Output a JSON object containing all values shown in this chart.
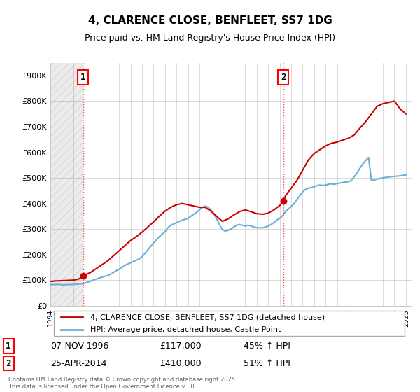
{
  "title": "4, CLARENCE CLOSE, BENFLEET, SS7 1DG",
  "subtitle": "Price paid vs. HM Land Registry's House Price Index (HPI)",
  "xlim": [
    1994.0,
    2025.5
  ],
  "ylim": [
    0,
    950000
  ],
  "yticks": [
    0,
    100000,
    200000,
    300000,
    400000,
    500000,
    600000,
    700000,
    800000,
    900000
  ],
  "ytick_labels": [
    "£0",
    "£100K",
    "£200K",
    "£300K",
    "£400K",
    "£500K",
    "£600K",
    "£700K",
    "£800K",
    "£900K"
  ],
  "xticks": [
    1994,
    1995,
    1996,
    1997,
    1998,
    1999,
    2000,
    2001,
    2002,
    2003,
    2004,
    2005,
    2006,
    2007,
    2008,
    2009,
    2010,
    2011,
    2012,
    2013,
    2014,
    2015,
    2016,
    2017,
    2018,
    2019,
    2020,
    2021,
    2022,
    2023,
    2024,
    2025
  ],
  "sale1_x": 1996.856,
  "sale1_y": 117000,
  "sale1_label": "1",
  "sale1_date": "07-NOV-1996",
  "sale1_price": "£117,000",
  "sale1_hpi": "45% ↑ HPI",
  "sale2_x": 2014.32,
  "sale2_y": 410000,
  "sale2_label": "2",
  "sale2_date": "25-APR-2014",
  "sale2_price": "£410,000",
  "sale2_hpi": "51% ↑ HPI",
  "hpi_color": "#6baed6",
  "price_color": "#cc0000",
  "vline_color": "#ff4444",
  "background_color": "#ffffff",
  "grid_color": "#cccccc",
  "hatch_color": "#dddddd",
  "legend_label_price": "4, CLARENCE CLOSE, BENFLEET, SS7 1DG (detached house)",
  "legend_label_hpi": "HPI: Average price, detached house, Castle Point",
  "footer": "Contains HM Land Registry data © Crown copyright and database right 2025.\nThis data is licensed under the Open Government Licence v3.0.",
  "hpi_data_x": [
    1994.0,
    1994.25,
    1994.5,
    1994.75,
    1995.0,
    1995.25,
    1995.5,
    1995.75,
    1996.0,
    1996.25,
    1996.5,
    1996.75,
    1997.0,
    1997.25,
    1997.5,
    1997.75,
    1998.0,
    1998.25,
    1998.5,
    1998.75,
    1999.0,
    1999.25,
    1999.5,
    1999.75,
    2000.0,
    2000.25,
    2000.5,
    2000.75,
    2001.0,
    2001.25,
    2001.5,
    2001.75,
    2002.0,
    2002.25,
    2002.5,
    2002.75,
    2003.0,
    2003.25,
    2003.5,
    2003.75,
    2004.0,
    2004.25,
    2004.5,
    2004.75,
    2005.0,
    2005.25,
    2005.5,
    2005.75,
    2006.0,
    2006.25,
    2006.5,
    2006.75,
    2007.0,
    2007.25,
    2007.5,
    2007.75,
    2008.0,
    2008.25,
    2008.5,
    2008.75,
    2009.0,
    2009.25,
    2009.5,
    2009.75,
    2010.0,
    2010.25,
    2010.5,
    2010.75,
    2011.0,
    2011.25,
    2011.5,
    2011.75,
    2012.0,
    2012.25,
    2012.5,
    2012.75,
    2013.0,
    2013.25,
    2013.5,
    2013.75,
    2014.0,
    2014.25,
    2014.5,
    2014.75,
    2015.0,
    2015.25,
    2015.5,
    2015.75,
    2016.0,
    2016.25,
    2016.5,
    2016.75,
    2017.0,
    2017.25,
    2017.5,
    2017.75,
    2018.0,
    2018.25,
    2018.5,
    2018.75,
    2019.0,
    2019.25,
    2019.5,
    2019.75,
    2020.0,
    2020.25,
    2020.5,
    2020.75,
    2021.0,
    2021.25,
    2021.5,
    2021.75,
    2022.0,
    2022.25,
    2022.5,
    2022.75,
    2023.0,
    2023.25,
    2023.5,
    2023.75,
    2024.0,
    2024.25,
    2024.5,
    2024.75,
    2025.0
  ],
  "hpi_data_y": [
    82000,
    82500,
    83000,
    83500,
    82000,
    82000,
    82500,
    83000,
    83500,
    84000,
    85000,
    86000,
    88000,
    92000,
    96000,
    100000,
    104000,
    108000,
    112000,
    115000,
    118000,
    123000,
    130000,
    137000,
    143000,
    150000,
    158000,
    163000,
    168000,
    173000,
    178000,
    183000,
    192000,
    205000,
    218000,
    232000,
    245000,
    258000,
    270000,
    280000,
    290000,
    305000,
    315000,
    320000,
    325000,
    330000,
    335000,
    338000,
    342000,
    350000,
    358000,
    365000,
    375000,
    385000,
    390000,
    385000,
    375000,
    360000,
    340000,
    318000,
    298000,
    292000,
    295000,
    300000,
    308000,
    315000,
    318000,
    315000,
    312000,
    315000,
    312000,
    308000,
    305000,
    305000,
    305000,
    308000,
    312000,
    318000,
    325000,
    335000,
    342000,
    352000,
    368000,
    378000,
    388000,
    400000,
    415000,
    430000,
    445000,
    455000,
    460000,
    462000,
    465000,
    470000,
    472000,
    470000,
    472000,
    475000,
    477000,
    475000,
    478000,
    480000,
    482000,
    484000,
    485000,
    490000,
    505000,
    520000,
    538000,
    555000,
    568000,
    580000,
    490000,
    492000,
    495000,
    498000,
    500000,
    502000,
    504000,
    505000,
    506000,
    507000,
    508000,
    510000,
    512000
  ],
  "price_data_x": [
    1994.0,
    1994.5,
    1995.0,
    1995.5,
    1996.0,
    1996.5,
    1996.856,
    1997.0,
    1997.5,
    1998.0,
    1998.5,
    1999.0,
    1999.5,
    2000.0,
    2000.5,
    2001.0,
    2001.5,
    2002.0,
    2002.5,
    2003.0,
    2003.5,
    2004.0,
    2004.5,
    2005.0,
    2005.5,
    2006.0,
    2006.5,
    2007.0,
    2007.5,
    2008.0,
    2008.5,
    2009.0,
    2009.5,
    2010.0,
    2010.5,
    2011.0,
    2011.5,
    2012.0,
    2012.5,
    2013.0,
    2013.5,
    2014.0,
    2014.32,
    2014.5,
    2015.0,
    2015.5,
    2016.0,
    2016.5,
    2017.0,
    2017.5,
    2018.0,
    2018.5,
    2019.0,
    2019.5,
    2020.0,
    2020.5,
    2021.0,
    2021.5,
    2022.0,
    2022.5,
    2023.0,
    2023.5,
    2024.0,
    2024.5,
    2025.0
  ],
  "price_data_y": [
    95000,
    97000,
    98000,
    99000,
    100000,
    105000,
    117000,
    120000,
    130000,
    145000,
    160000,
    175000,
    195000,
    215000,
    235000,
    255000,
    270000,
    288000,
    308000,
    328000,
    350000,
    370000,
    385000,
    395000,
    400000,
    395000,
    390000,
    385000,
    385000,
    370000,
    350000,
    330000,
    340000,
    355000,
    368000,
    375000,
    368000,
    360000,
    358000,
    362000,
    375000,
    392000,
    410000,
    430000,
    460000,
    490000,
    530000,
    570000,
    595000,
    610000,
    625000,
    635000,
    640000,
    648000,
    655000,
    668000,
    695000,
    720000,
    750000,
    780000,
    790000,
    795000,
    800000,
    770000,
    750000
  ]
}
